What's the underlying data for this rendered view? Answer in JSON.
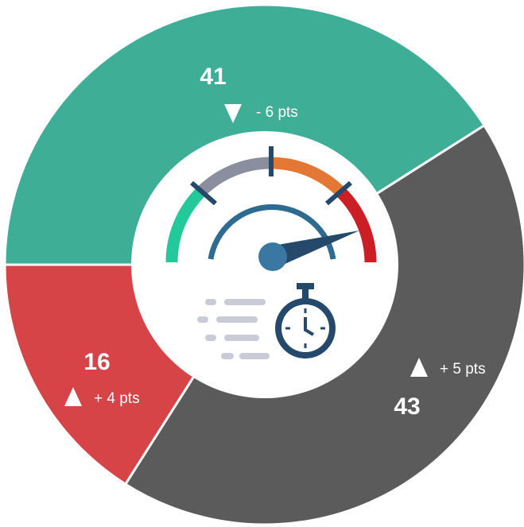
{
  "chart_data": {
    "type": "pie",
    "donut": true,
    "categories": [
      null,
      null,
      null
    ],
    "values": [
      41,
      43,
      16
    ],
    "colors": [
      "#3fae96",
      "#5b5b5b",
      "#d64448"
    ],
    "changes": [
      "- 6 pts",
      "+ 5 pts",
      "+ 4 pts"
    ],
    "change_markers": [
      "down",
      "up",
      "up"
    ]
  }
}
